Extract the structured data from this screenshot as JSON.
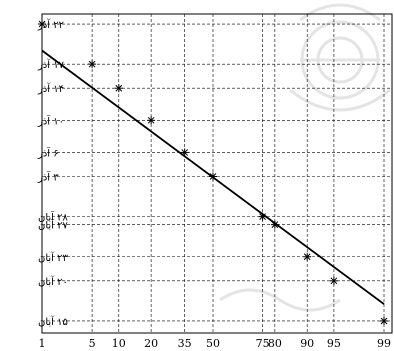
{
  "chart_data": {
    "type": "scatter",
    "title": "",
    "xlabel": "",
    "ylabel": "",
    "x_ticks": [
      1,
      5,
      10,
      20,
      35,
      50,
      75,
      80,
      90,
      95,
      99
    ],
    "x_tick_labels": [
      "1",
      "5",
      "10",
      "20",
      "35",
      "50",
      "75",
      "80",
      "90",
      "95",
      "99"
    ],
    "y_ticks": [
      {
        "day": 22,
        "label": "۲۲ آذر"
      },
      {
        "day": 17,
        "label": "۱۷ آذر"
      },
      {
        "day": 14,
        "label": "۱۴ آذر"
      },
      {
        "day": 10,
        "label": "۱۰ آذر"
      },
      {
        "day": 6,
        "label": "۶ آذر"
      },
      {
        "day": 3,
        "label": "۳ آذر"
      },
      {
        "day": -2,
        "label": "۲۸ آبان"
      },
      {
        "day": -3,
        "label": "۲۷ آبان"
      },
      {
        "day": -7,
        "label": "۲۳ آبان"
      },
      {
        "day": -10,
        "label": "۲۰ آبان"
      },
      {
        "day": -15,
        "label": "۱۵ آبان"
      }
    ],
    "points": [
      {
        "x": 1,
        "y": 22
      },
      {
        "x": 5,
        "y": 17
      },
      {
        "x": 10,
        "y": 14
      },
      {
        "x": 20,
        "y": 10
      },
      {
        "x": 35,
        "y": 6
      },
      {
        "x": 50,
        "y": 3
      },
      {
        "x": 75,
        "y": -2
      },
      {
        "x": 80,
        "y": -3
      },
      {
        "x": 90,
        "y": -7
      },
      {
        "x": 95,
        "y": -10
      },
      {
        "x": 99,
        "y": -15
      }
    ],
    "fit_line": [
      {
        "x": 1,
        "y": 18.7
      },
      {
        "x": 99,
        "y": -12.9
      }
    ],
    "grid": true,
    "legend": "none"
  }
}
